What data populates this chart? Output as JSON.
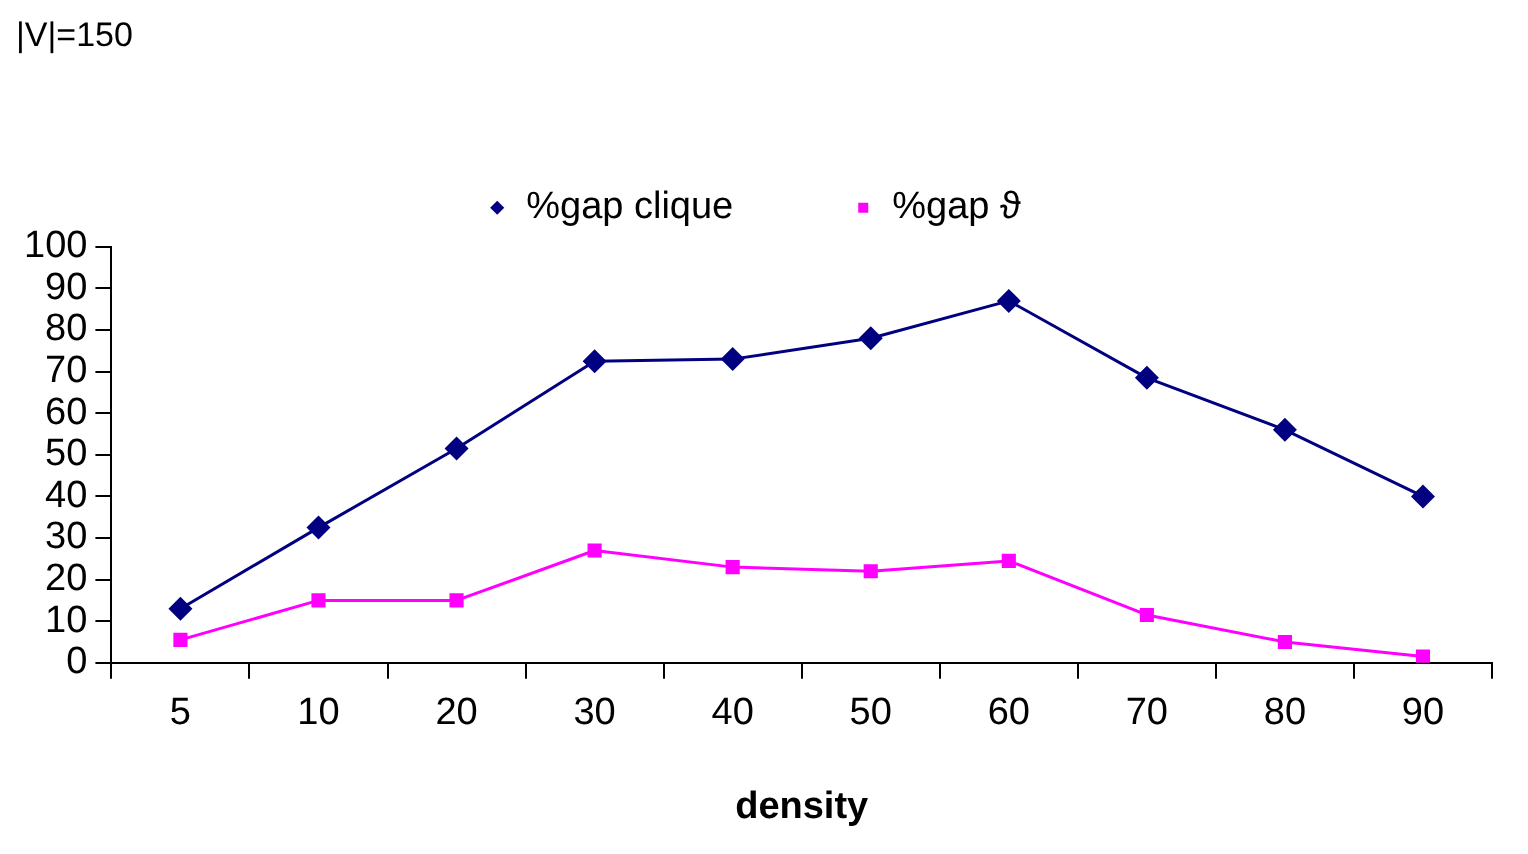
{
  "chart_data": {
    "type": "line",
    "title": "|V|=150",
    "xlabel": "density",
    "categories": [
      "5",
      "10",
      "20",
      "30",
      "40",
      "50",
      "60",
      "70",
      "80",
      "90"
    ],
    "series": [
      {
        "name": "%gap clique",
        "color": "#000080",
        "marker": "diamond",
        "values": [
          13,
          32.5,
          51.5,
          72.5,
          73,
          78,
          87,
          68.5,
          56,
          40
        ]
      },
      {
        "name": "%gap ϑ",
        "color": "#ff00ff",
        "marker": "square",
        "values": [
          5.5,
          15,
          15,
          27,
          23,
          22,
          24.5,
          11.5,
          5,
          1.5
        ]
      }
    ],
    "ylim": [
      0,
      100
    ],
    "yticks": [
      0,
      10,
      20,
      30,
      40,
      50,
      60,
      70,
      80,
      90,
      100
    ],
    "grid": false,
    "legend": "top",
    "line_style": "solid"
  }
}
